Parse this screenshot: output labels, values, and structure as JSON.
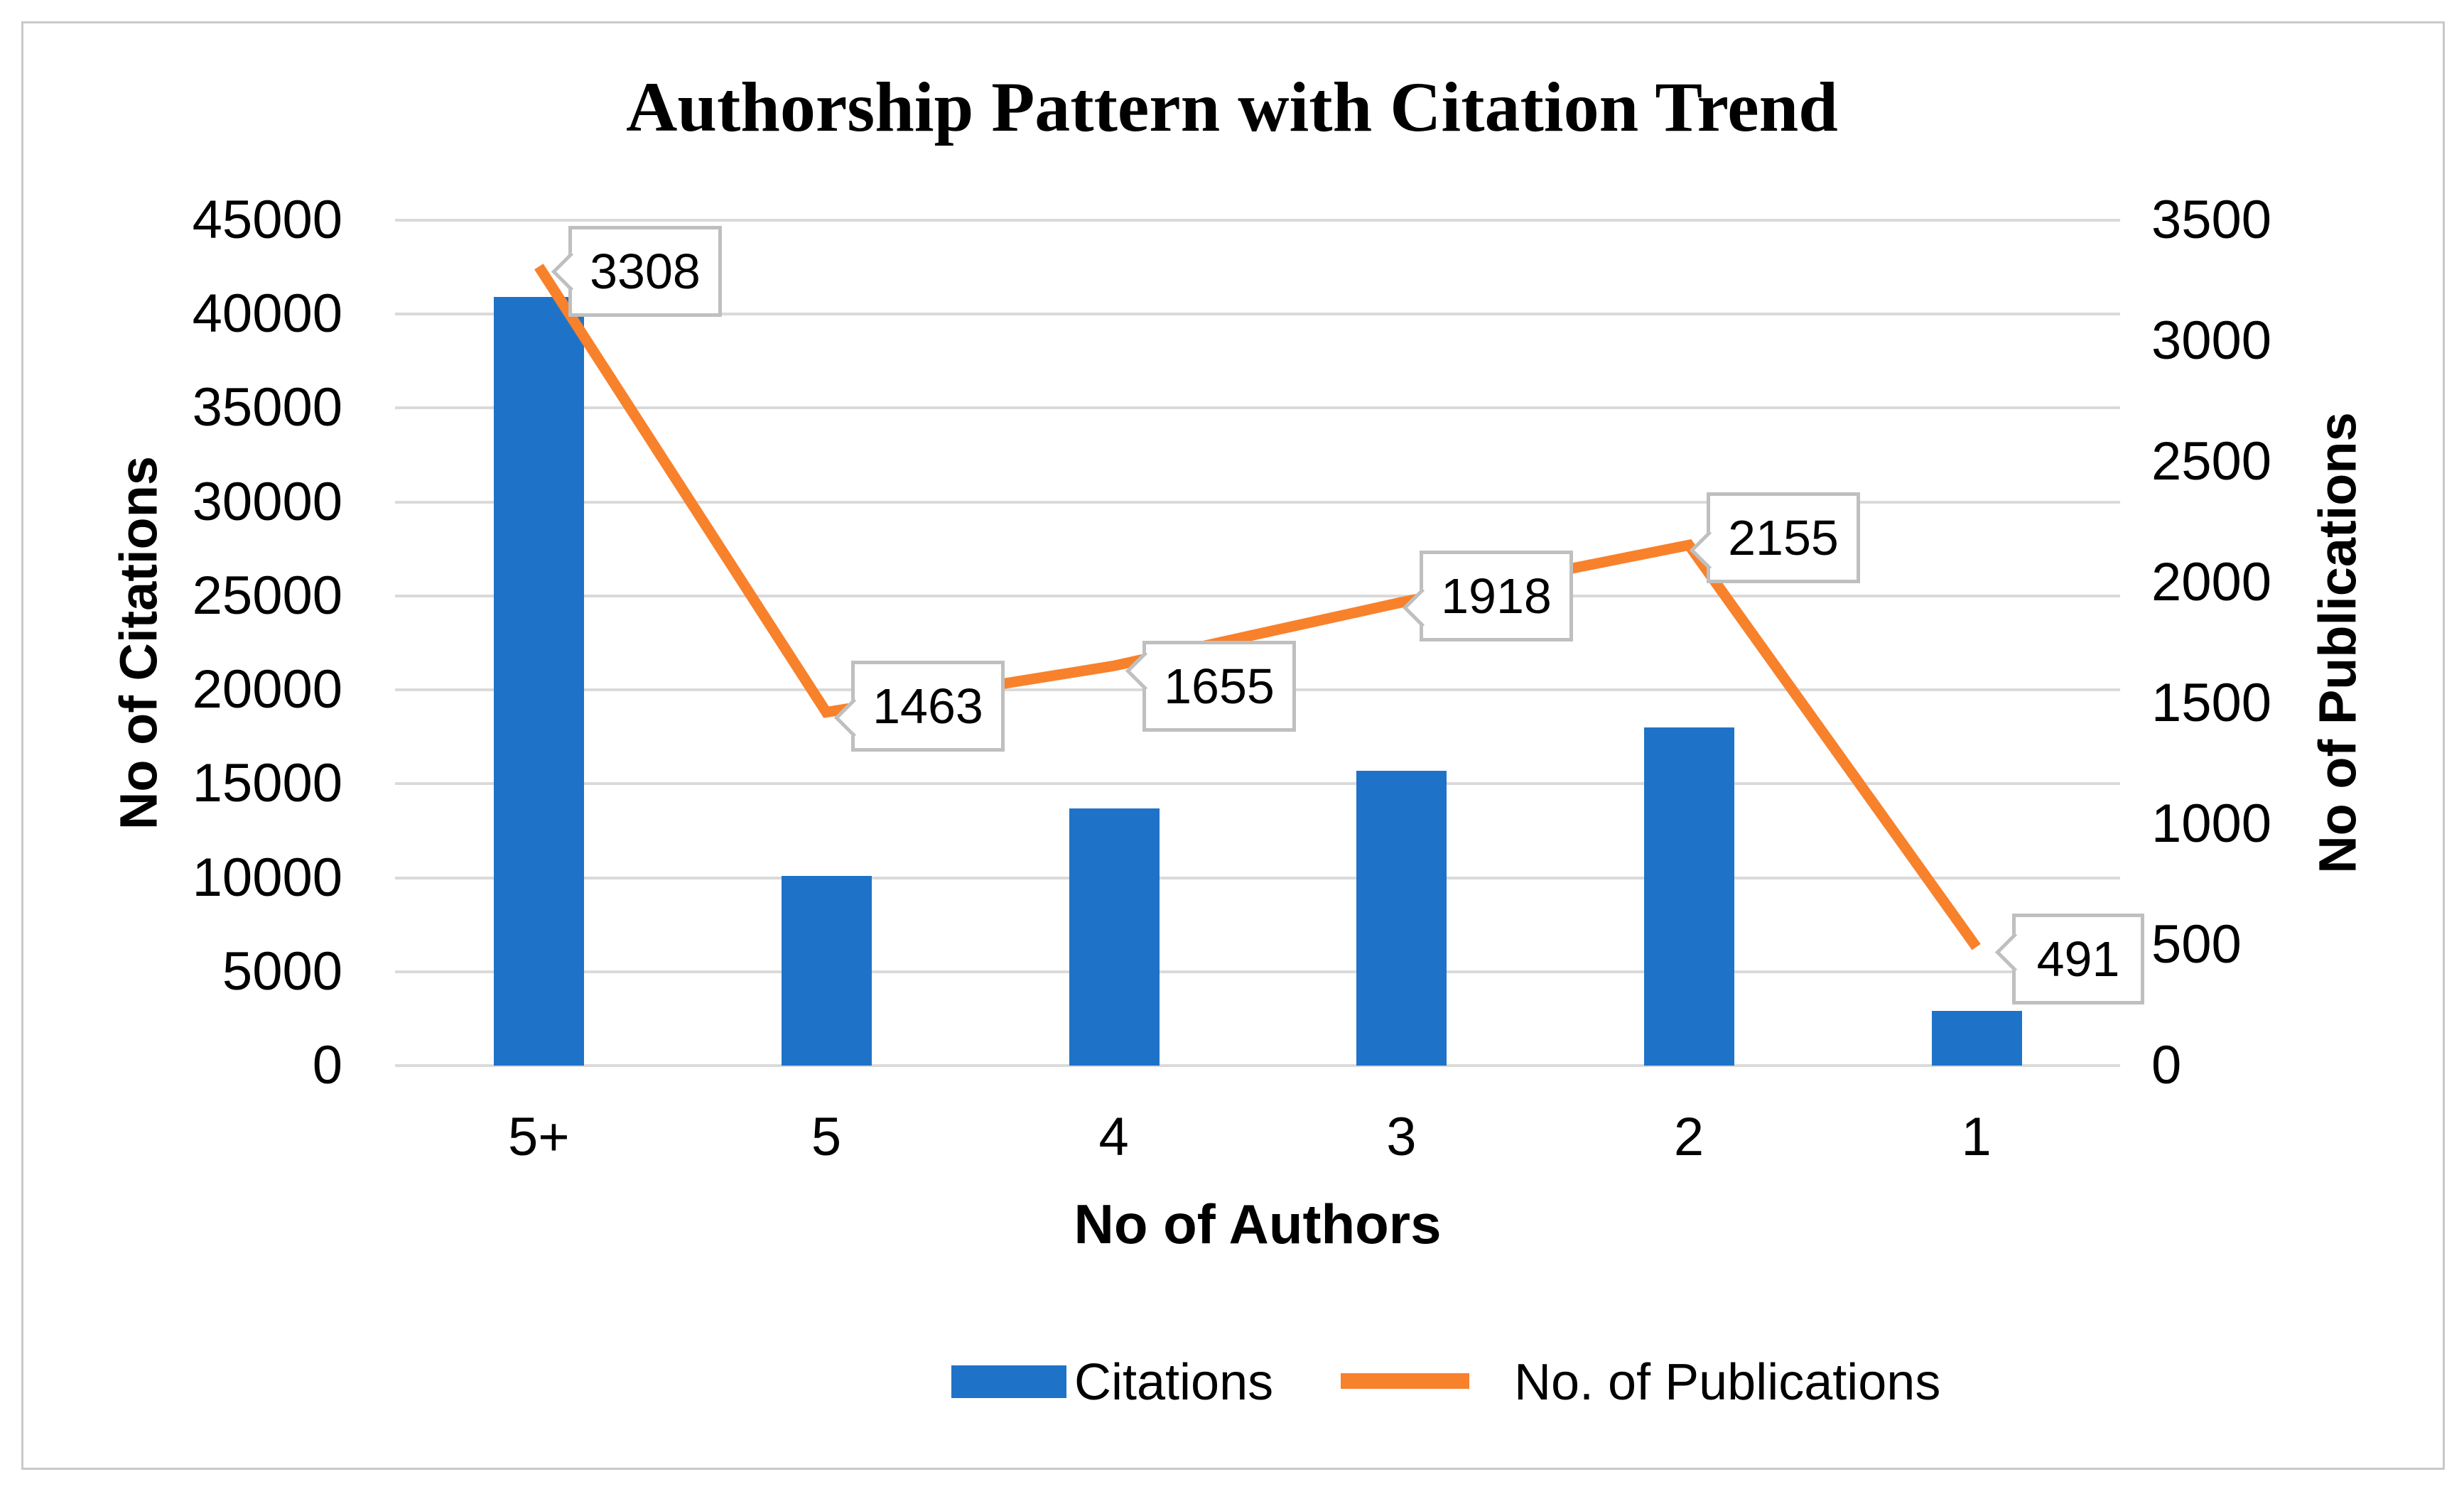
{
  "title": "Authorship Pattern with Citation Trend",
  "chart_data": {
    "type": "bar+line combo",
    "categories": [
      "5+",
      "5",
      "4",
      "3",
      "2",
      "1"
    ],
    "series": [
      {
        "name": "Citations",
        "type": "bar",
        "axis": "left",
        "color": "#1e73c8",
        "values": [
          40900,
          10100,
          13700,
          15700,
          18000,
          2900
        ]
      },
      {
        "name": "No. of Publications",
        "type": "line",
        "axis": "right",
        "color": "#f8812c",
        "values": [
          3308,
          1463,
          1655,
          1918,
          2155,
          491
        ],
        "data_labels": [
          "3308",
          "1463",
          "1655",
          "1918",
          "2155",
          "491"
        ]
      }
    ],
    "left_axis": {
      "title": "No of Citations",
      "min": 0,
      "max": 45000,
      "step": 5000,
      "ticks": [
        "0",
        "5000",
        "10000",
        "15000",
        "20000",
        "25000",
        "30000",
        "35000",
        "40000",
        "45000"
      ]
    },
    "right_axis": {
      "title": "No of Publications",
      "min": 0,
      "max": 3500,
      "step": 500,
      "ticks": [
        "0",
        "500",
        "1000",
        "1500",
        "2000",
        "2500",
        "3000",
        "3500"
      ]
    },
    "x_axis": {
      "title": "No of Authors"
    },
    "grid": true,
    "legend_position": "bottom",
    "label_box_offsets": [
      {
        "left": 800,
        "top": 318
      },
      {
        "left": 1198,
        "top": 930
      },
      {
        "left": 1608,
        "top": 902
      },
      {
        "left": 1998,
        "top": 775
      },
      {
        "left": 2402,
        "top": 693
      },
      {
        "left": 2832,
        "top": 1286
      }
    ]
  },
  "legend": {
    "items": [
      {
        "label": "Citations",
        "swatch": "bar",
        "color": "#1e73c8"
      },
      {
        "label": "No. of Publications",
        "swatch": "line",
        "color": "#f8812c"
      }
    ]
  },
  "colors": {
    "bar": "#1e73c8",
    "line": "#f8812c",
    "gridline": "#dadada",
    "callout_border": "#bfbfbf",
    "frame_border": "#c9c9c9",
    "text": "#000000"
  }
}
